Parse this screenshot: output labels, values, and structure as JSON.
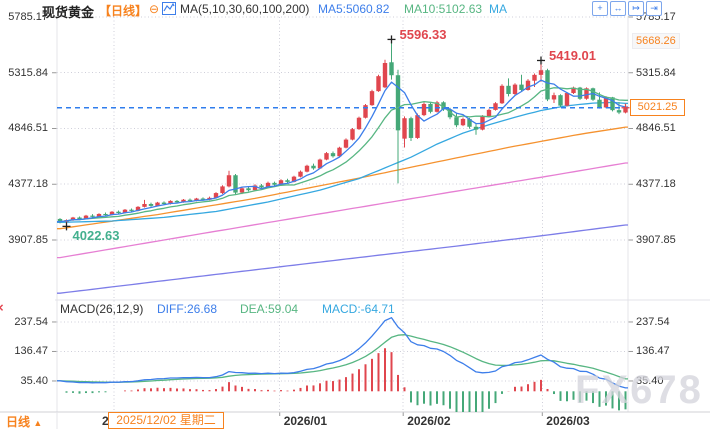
{
  "header": {
    "symbol": "现货黄金",
    "period_tag": "【日线】",
    "collapse_glyph": "⊖",
    "ma_label": "MA(5,10,30,60,100,200)",
    "ma5_label": "MA5:5060.82",
    "ma10_label": "MA10:5102.63",
    "ma30_label": "MA"
  },
  "toolbar": {
    "icons": [
      {
        "name": "crosshair",
        "glyph": "+"
      },
      {
        "name": "fit-width",
        "glyph": "↔"
      },
      {
        "name": "scroll-latest",
        "glyph": "↦"
      },
      {
        "name": "popout",
        "glyph": "⇥"
      }
    ]
  },
  "macd_header": {
    "title": "MACD(26,12,9)",
    "diff_label": "DIFF:26.68",
    "dea_label": "DEA:59.04",
    "macd_label": "MACD:-64.71",
    "close_glyph": "×"
  },
  "price_axis": {
    "current_label": "5021.25",
    "extra_label": "5668.26"
  },
  "xaxis": {
    "crosshair_label": "2025/12/02 星期二",
    "hidden_fragment": "2"
  },
  "bottom_bar": {
    "period": "日线",
    "arrow": "▲"
  },
  "watermark": "FX678",
  "colors": {
    "up": "#e0464e",
    "down": "#45a878",
    "ma5": "#3d7eea",
    "ma10": "#57b682",
    "ma30": "#36a8e0",
    "ma60": "#f5922f",
    "ma100": "#e67fd3",
    "ma200": "#7d7de8",
    "accent": "#f7821e",
    "price_line": "#2f7ded",
    "grid": "#cfcfda",
    "border": "#e4e4ea",
    "annotation_low": "#43b08e"
  },
  "chart_data": {
    "type": "candlestick",
    "title": "现货黄金 日线",
    "y_ticks": [
      5785.17,
      5315.84,
      4846.51,
      4377.18,
      3907.85
    ],
    "macd_ticks": [
      237.54,
      136.47,
      35.4
    ],
    "price_line": 5021.25,
    "macd_params": [
      26,
      12,
      9
    ],
    "x_ticks": [
      {
        "label": "2025/12",
        "i": 8.3,
        "hidden": true
      },
      {
        "label": "2026/01",
        "i": 33.8
      },
      {
        "label": "2026/02",
        "i": 52.8
      },
      {
        "label": "2026/03",
        "i": 74.2
      }
    ],
    "annotations": [
      {
        "text": "5596.33",
        "i": 51,
        "price": 5596.33,
        "type": "high"
      },
      {
        "text": "5419.01",
        "i": 74,
        "price": 5419.01,
        "type": "high"
      },
      {
        "text": "4022.63",
        "i": 1,
        "price": 4022.63,
        "type": "low"
      },
      {
        "text": "",
        "i": 87,
        "price": 5021.25,
        "type": "current"
      }
    ],
    "candles": [
      [
        4085,
        4092,
        4048,
        4062
      ],
      [
        4062,
        4081,
        4022.63,
        4076
      ],
      [
        4076,
        4103,
        4069,
        4097
      ],
      [
        4097,
        4106,
        4075,
        4084
      ],
      [
        4084,
        4119,
        4080,
        4113
      ],
      [
        4113,
        4126,
        4097,
        4104
      ],
      [
        4104,
        4133,
        4099,
        4127
      ],
      [
        4127,
        4139,
        4111,
        4119
      ],
      [
        4119,
        4151,
        4115,
        4146
      ],
      [
        4146,
        4156,
        4127,
        4135
      ],
      [
        4135,
        4169,
        4131,
        4163
      ],
      [
        4163,
        4173,
        4145,
        4153
      ],
      [
        4153,
        4193,
        4149,
        4187
      ],
      [
        4187,
        4246,
        4181,
        4211
      ],
      [
        4211,
        4223,
        4187,
        4195
      ],
      [
        4195,
        4229,
        4191,
        4223
      ],
      [
        4223,
        4233,
        4204,
        4211
      ],
      [
        4211,
        4243,
        4207,
        4237
      ],
      [
        4237,
        4245,
        4217,
        4225
      ],
      [
        4225,
        4253,
        4221,
        4247
      ],
      [
        4247,
        4257,
        4229,
        4237
      ],
      [
        4237,
        4263,
        4233,
        4257
      ],
      [
        4257,
        4267,
        4239,
        4247
      ],
      [
        4247,
        4273,
        4243,
        4263
      ],
      [
        4263,
        4311,
        4257,
        4303
      ],
      [
        4303,
        4369,
        4295,
        4359
      ],
      [
        4359,
        4491,
        4351,
        4453
      ],
      [
        4453,
        4463,
        4287,
        4307
      ],
      [
        4307,
        4353,
        4294,
        4343
      ],
      [
        4343,
        4355,
        4317,
        4327
      ],
      [
        4327,
        4377,
        4321,
        4367
      ],
      [
        4367,
        4379,
        4343,
        4351
      ],
      [
        4351,
        4399,
        4347,
        4389
      ],
      [
        4389,
        4399,
        4361,
        4373
      ],
      [
        4373,
        4419,
        4369,
        4411
      ],
      [
        4411,
        4423,
        4387,
        4397
      ],
      [
        4397,
        4449,
        4393,
        4441
      ],
      [
        4441,
        4493,
        4435,
        4483
      ],
      [
        4483,
        4541,
        4477,
        4533
      ],
      [
        4533,
        4551,
        4499,
        4511
      ],
      [
        4511,
        4593,
        4507,
        4585
      ],
      [
        4585,
        4649,
        4579,
        4639
      ],
      [
        4639,
        4653,
        4601,
        4613
      ],
      [
        4613,
        4693,
        4609,
        4685
      ],
      [
        4685,
        4763,
        4679,
        4753
      ],
      [
        4753,
        4851,
        4747,
        4841
      ],
      [
        4841,
        4947,
        4835,
        4937
      ],
      [
        4937,
        5053,
        4931,
        5043
      ],
      [
        5043,
        5173,
        5037,
        5161
      ],
      [
        5161,
        5299,
        5155,
        5287
      ],
      [
        5193,
        5425,
        5186,
        5398
      ],
      [
        5404,
        5596.33,
        5258,
        5295
      ],
      [
        5295,
        5341,
        4385,
        4831
      ],
      [
        4761,
        4949,
        4687,
        4933
      ],
      [
        4933,
        4945,
        4741,
        4767
      ],
      [
        4767,
        4973,
        4759,
        4959
      ],
      [
        4959,
        5066,
        4951,
        5053
      ],
      [
        5053,
        5063,
        4974,
        4987
      ],
      [
        4987,
        5079,
        4981,
        5067
      ],
      [
        5067,
        5076,
        4995,
        5007
      ],
      [
        5007,
        5021,
        4924,
        4941
      ],
      [
        4941,
        4979,
        4857,
        4874
      ],
      [
        4874,
        4939,
        4867,
        4927
      ],
      [
        4927,
        4936,
        4844,
        4861
      ],
      [
        4861,
        4883,
        4794,
        4837
      ],
      [
        4837,
        4959,
        4831,
        4949
      ],
      [
        4949,
        5013,
        4941,
        5003
      ],
      [
        5003,
        5069,
        4997,
        5059
      ],
      [
        5059,
        5219,
        5053,
        5206
      ],
      [
        5206,
        5269,
        5117,
        5137
      ],
      [
        5137,
        5227,
        5129,
        5216
      ],
      [
        5216,
        5299,
        5154,
        5171
      ],
      [
        5171,
        5262,
        5165,
        5249
      ],
      [
        5249,
        5309,
        5196,
        5298
      ],
      [
        5298,
        5419.01,
        5240,
        5337
      ],
      [
        5337,
        5349,
        5077,
        5091
      ],
      [
        5091,
        5149,
        5061,
        5127
      ],
      [
        5127,
        5135,
        5027,
        5039
      ],
      [
        5039,
        5153,
        5033,
        5145
      ],
      [
        5145,
        5199,
        5137,
        5191
      ],
      [
        5191,
        5197,
        5087,
        5097
      ],
      [
        5097,
        5193,
        5089,
        5185
      ],
      [
        5185,
        5191,
        5079,
        5089
      ],
      [
        5089,
        5151,
        5014,
        5024
      ],
      [
        5024,
        5119,
        5017,
        5109
      ],
      [
        5109,
        5113,
        4991,
        5001
      ],
      [
        5001,
        5069,
        4967,
        4981
      ],
      [
        4981,
        5047,
        4974,
        5021.25
      ]
    ],
    "overlays": {
      "ma30": [
        [
          0,
          4056
        ],
        [
          8,
          4068
        ],
        [
          16,
          4098
        ],
        [
          24,
          4148
        ],
        [
          32,
          4228
        ],
        [
          40,
          4328
        ],
        [
          46,
          4425
        ],
        [
          50,
          4515
        ],
        [
          54,
          4605
        ],
        [
          58,
          4715
        ],
        [
          62,
          4808
        ],
        [
          66,
          4878
        ],
        [
          70,
          4942
        ],
        [
          74,
          4998
        ],
        [
          78,
          5038
        ],
        [
          82,
          5060
        ],
        [
          85,
          5066
        ],
        [
          87,
          5058
        ]
      ],
      "ma60": [
        [
          0,
          4003
        ],
        [
          15,
          4122
        ],
        [
          30,
          4258
        ],
        [
          45,
          4418
        ],
        [
          60,
          4588
        ],
        [
          70,
          4698
        ],
        [
          80,
          4798
        ],
        [
          87,
          4858
        ]
      ],
      "ma100": [
        [
          0,
          3760
        ],
        [
          20,
          3945
        ],
        [
          40,
          4128
        ],
        [
          60,
          4310
        ],
        [
          75,
          4445
        ],
        [
          87,
          4556
        ]
      ],
      "ma200": [
        [
          0,
          3460
        ],
        [
          20,
          3592
        ],
        [
          40,
          3722
        ],
        [
          60,
          3850
        ],
        [
          75,
          3950
        ],
        [
          87,
          4034
        ]
      ]
    }
  }
}
